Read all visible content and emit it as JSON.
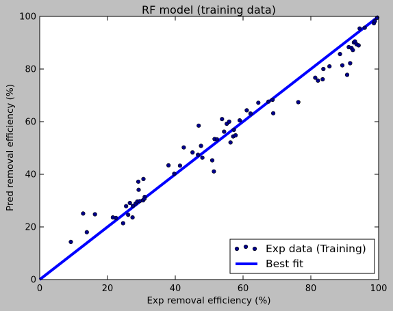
{
  "chart_data": {
    "type": "scatter",
    "title": "RF model (training data)",
    "xlabel": "Exp removal efficiency (%)",
    "ylabel": "Pred removal efficiency (%)",
    "xlim": [
      0,
      100
    ],
    "ylim": [
      0,
      100
    ],
    "xticks": [
      0,
      20,
      40,
      60,
      80,
      100
    ],
    "yticks": [
      0,
      20,
      40,
      60,
      80,
      100
    ],
    "grid": false,
    "legend_position": "bottom-right",
    "series": [
      {
        "name": "Exp data (Training)",
        "kind": "scatter",
        "color": "#00008b",
        "points": [
          [
            9.2,
            14.3
          ],
          [
            12.8,
            25.1
          ],
          [
            13.9,
            18.0
          ],
          [
            16.3,
            24.8
          ],
          [
            21.6,
            23.6
          ],
          [
            22.5,
            23.4
          ],
          [
            24.6,
            21.4
          ],
          [
            25.5,
            27.9
          ],
          [
            26.1,
            24.6
          ],
          [
            26.6,
            29.1
          ],
          [
            27.4,
            23.6
          ],
          [
            27.5,
            28.0
          ],
          [
            28.3,
            28.9
          ],
          [
            28.8,
            29.7
          ],
          [
            29.1,
            37.2
          ],
          [
            29.2,
            34.1
          ],
          [
            29.5,
            29.8
          ],
          [
            30.5,
            30.1
          ],
          [
            30.6,
            38.2
          ],
          [
            31.0,
            31.4
          ],
          [
            30.9,
            30.7
          ],
          [
            38.0,
            43.4
          ],
          [
            39.7,
            40.2
          ],
          [
            41.4,
            43.3
          ],
          [
            42.5,
            50.2
          ],
          [
            45.1,
            48.3
          ],
          [
            46.7,
            47.4
          ],
          [
            46.9,
            58.5
          ],
          [
            47.6,
            50.8
          ],
          [
            48.0,
            46.3
          ],
          [
            50.9,
            45.3
          ],
          [
            51.4,
            41.1
          ],
          [
            51.6,
            53.4
          ],
          [
            52.3,
            53.3
          ],
          [
            53.8,
            61.0
          ],
          [
            54.4,
            56.2
          ],
          [
            55.2,
            59.2
          ],
          [
            55.9,
            60.0
          ],
          [
            56.3,
            52.1
          ],
          [
            57.1,
            54.4
          ],
          [
            57.3,
            56.9
          ],
          [
            57.8,
            54.8
          ],
          [
            59.0,
            60.5
          ],
          [
            61.1,
            64.3
          ],
          [
            62.2,
            63.1
          ],
          [
            64.5,
            67.2
          ],
          [
            67.5,
            67.6
          ],
          [
            68.7,
            68.3
          ],
          [
            68.9,
            63.2
          ],
          [
            76.3,
            67.4
          ],
          [
            81.3,
            76.7
          ],
          [
            82.1,
            75.6
          ],
          [
            83.5,
            76.1
          ],
          [
            83.7,
            80.0
          ],
          [
            85.5,
            81.0
          ],
          [
            88.6,
            85.7
          ],
          [
            89.3,
            81.4
          ],
          [
            90.7,
            77.8
          ],
          [
            91.2,
            88.3
          ],
          [
            91.6,
            82.2
          ],
          [
            92.0,
            88.0
          ],
          [
            92.4,
            87.2
          ],
          [
            92.7,
            90.1
          ],
          [
            93.0,
            90.5
          ],
          [
            93.5,
            89.4
          ],
          [
            94.1,
            89.0
          ],
          [
            94.4,
            95.4
          ],
          [
            95.9,
            95.7
          ],
          [
            98.6,
            97.4
          ],
          [
            98.9,
            98.2
          ],
          [
            99.6,
            99.5
          ]
        ]
      },
      {
        "name": "Best fit",
        "kind": "line",
        "color": "#0000ff",
        "points": [
          [
            0,
            0
          ],
          [
            100,
            100
          ]
        ]
      }
    ]
  }
}
